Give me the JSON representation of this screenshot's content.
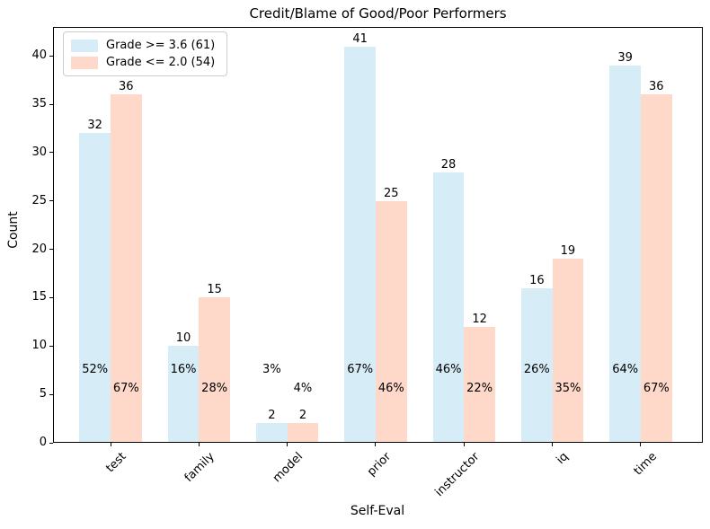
{
  "chart_data": {
    "type": "bar",
    "title": "Credit/Blame of Good/Poor Performers",
    "xlabel": "Self-Eval",
    "ylabel": "Count",
    "categories": [
      "test",
      "family",
      "model",
      "prior",
      "instructor",
      "iq",
      "time"
    ],
    "series": [
      {
        "name": "Grade >= 3.6 (61)",
        "color": "#d6ecf6",
        "values": [
          32,
          10,
          2,
          41,
          28,
          16,
          39
        ],
        "pct_labels": [
          "52%",
          "16%",
          "3%",
          "67%",
          "46%",
          "26%",
          "64%"
        ]
      },
      {
        "name": "Grade <= 2.0 (54)",
        "color": "#fed8c8",
        "values": [
          36,
          15,
          2,
          25,
          12,
          19,
          36
        ],
        "pct_labels": [
          "67%",
          "28%",
          "4%",
          "46%",
          "22%",
          "35%",
          "67%"
        ]
      }
    ],
    "yticks": [
      0,
      5,
      10,
      15,
      20,
      25,
      30,
      35,
      40
    ],
    "ylim": [
      0,
      43
    ],
    "grid": false,
    "legend_position": "upper left",
    "bar_value_labels": true,
    "axis_color": "#000000",
    "background_color": "#ffffff"
  }
}
